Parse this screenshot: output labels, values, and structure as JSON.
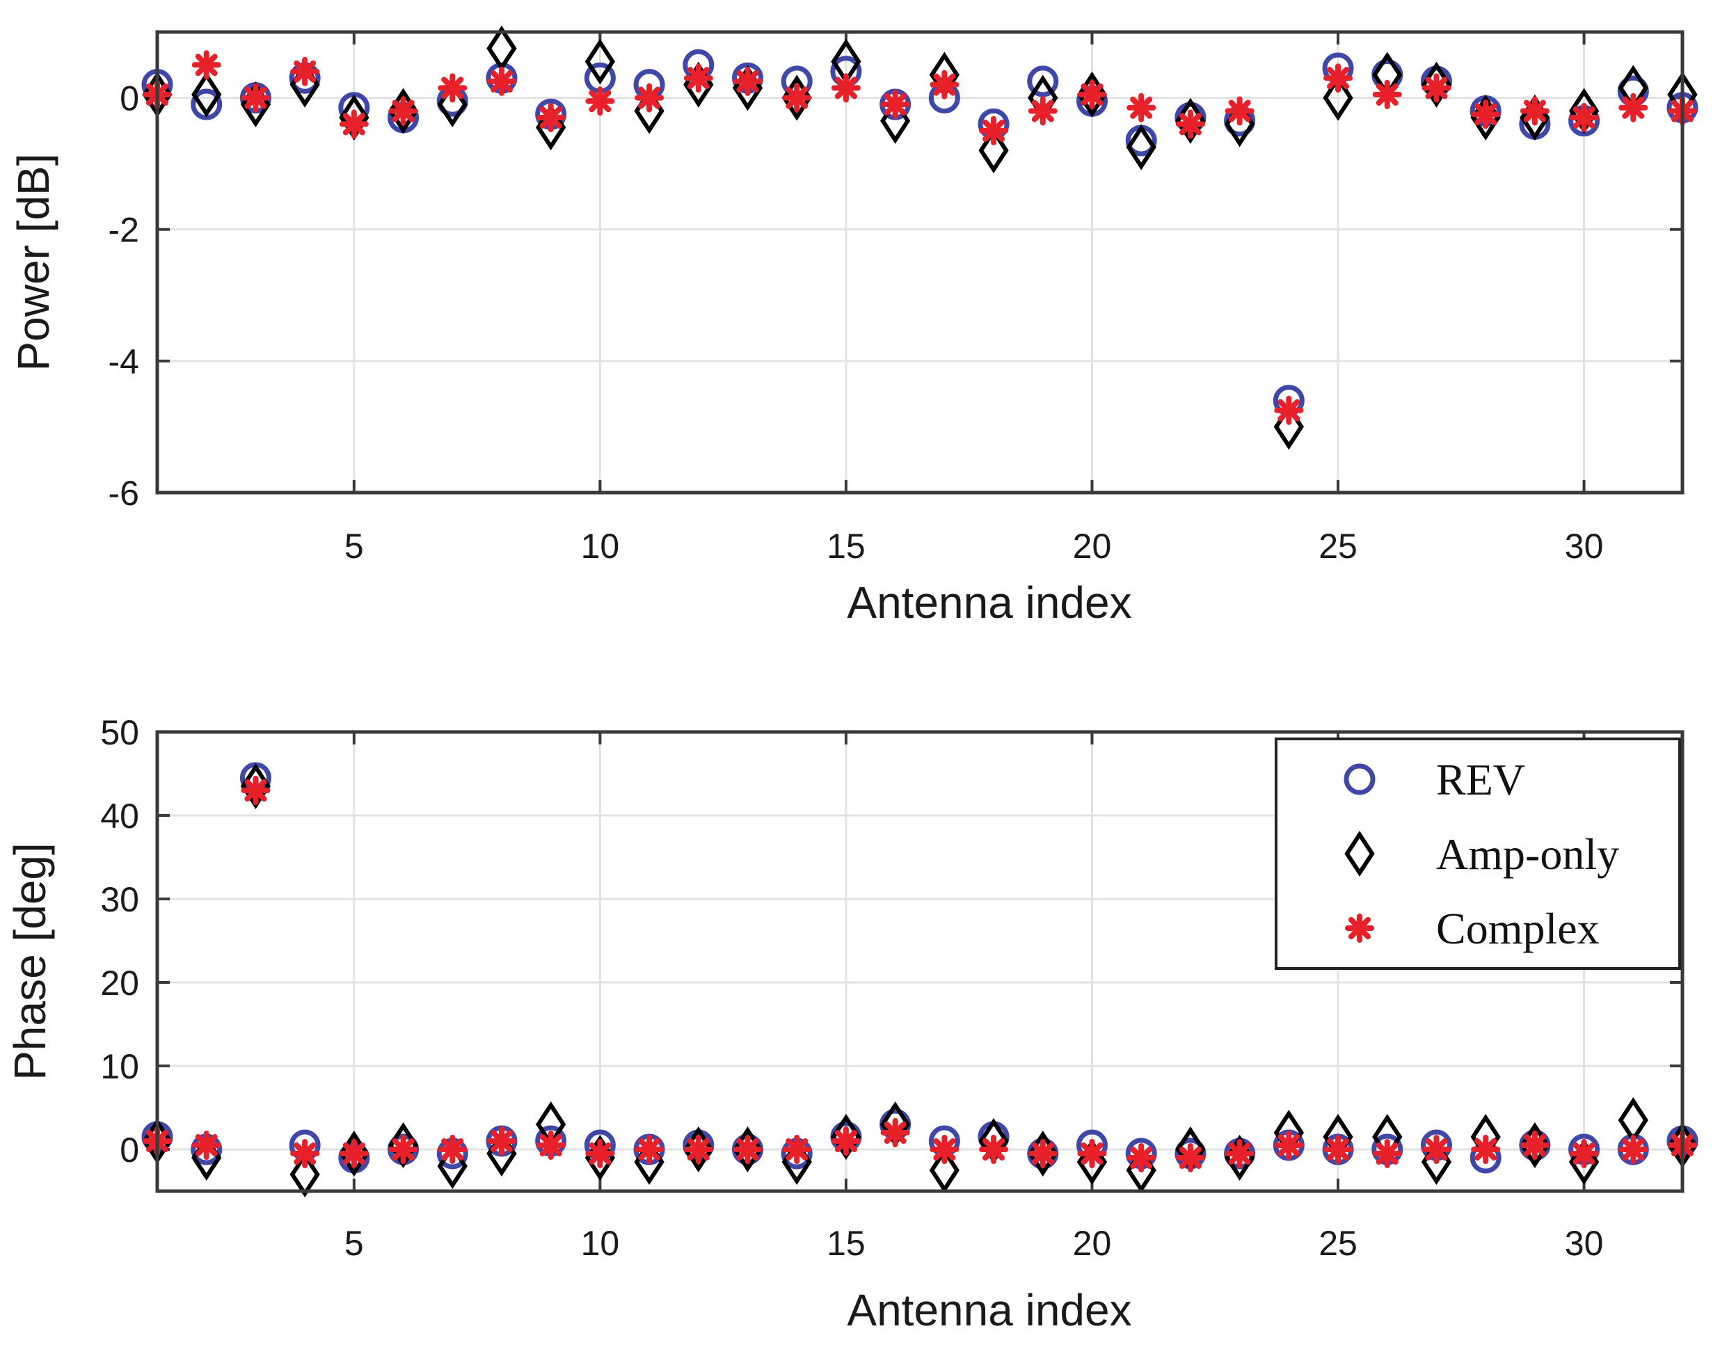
{
  "chart_data": [
    {
      "type": "scatter",
      "title": "",
      "xlabel": "Antenna index",
      "ylabel": "Power [dB]",
      "xlim": [
        1,
        32
      ],
      "ylim": [
        -6,
        1
      ],
      "xticks": [
        5,
        10,
        15,
        20,
        25,
        30
      ],
      "yticks": [
        -6,
        -4,
        -2,
        0
      ],
      "xtick_labels": [
        "5",
        "10",
        "15",
        "20",
        "25",
        "30"
      ],
      "ytick_labels": [
        "-6",
        "-4",
        "-2",
        "0"
      ],
      "grid": true,
      "legend": null,
      "x": [
        1,
        2,
        3,
        4,
        5,
        6,
        7,
        8,
        9,
        10,
        11,
        12,
        13,
        14,
        15,
        16,
        17,
        18,
        19,
        20,
        21,
        22,
        23,
        24,
        25,
        26,
        27,
        28,
        29,
        30,
        31,
        32
      ],
      "series": [
        {
          "name": "REV",
          "marker": "circle",
          "color": "#3f48a8",
          "values": [
            0.2,
            -0.1,
            0.0,
            0.3,
            -0.15,
            -0.3,
            -0.05,
            0.3,
            -0.25,
            0.3,
            0.2,
            0.5,
            0.3,
            0.25,
            0.4,
            -0.1,
            0.0,
            -0.4,
            0.25,
            -0.05,
            -0.65,
            -0.3,
            -0.35,
            -4.6,
            0.45,
            0.35,
            0.25,
            -0.2,
            -0.4,
            -0.35,
            0.1,
            -0.15
          ]
        },
        {
          "name": "Amp-only",
          "marker": "diamond",
          "color": "#000000",
          "values": [
            0.05,
            0.05,
            -0.1,
            0.2,
            -0.3,
            -0.2,
            -0.1,
            0.75,
            -0.45,
            0.55,
            -0.2,
            0.2,
            0.15,
            0.0,
            0.55,
            -0.35,
            0.35,
            -0.8,
            0.0,
            0.05,
            -0.75,
            -0.35,
            -0.4,
            -5.0,
            0.0,
            0.35,
            0.2,
            -0.3,
            -0.3,
            -0.2,
            0.15,
            0.05
          ]
        },
        {
          "name": "Complex",
          "marker": "asterisk",
          "color": "#e8202a",
          "values": [
            0.05,
            0.5,
            0.0,
            0.4,
            -0.4,
            -0.2,
            0.15,
            0.25,
            -0.3,
            -0.05,
            0.0,
            0.3,
            0.25,
            0.0,
            0.15,
            -0.1,
            0.2,
            -0.5,
            -0.2,
            0.05,
            -0.15,
            -0.4,
            -0.2,
            -4.75,
            0.3,
            0.05,
            0.15,
            -0.25,
            -0.2,
            -0.3,
            -0.15,
            -0.2
          ]
        }
      ]
    },
    {
      "type": "scatter",
      "title": "",
      "xlabel": "Antenna index",
      "ylabel": "Phase [deg]",
      "xlim": [
        1,
        32
      ],
      "ylim": [
        -5,
        50
      ],
      "xticks": [
        5,
        10,
        15,
        20,
        25,
        30
      ],
      "yticks": [
        0,
        10,
        20,
        30,
        40,
        50
      ],
      "xtick_labels": [
        "5",
        "10",
        "15",
        "20",
        "25",
        "30"
      ],
      "ytick_labels": [
        "0",
        "10",
        "20",
        "30",
        "40",
        "50"
      ],
      "grid": true,
      "legend": "top-right",
      "x": [
        1,
        2,
        3,
        4,
        5,
        6,
        7,
        8,
        9,
        10,
        11,
        12,
        13,
        14,
        15,
        16,
        17,
        18,
        19,
        20,
        21,
        22,
        23,
        24,
        25,
        26,
        27,
        28,
        29,
        30,
        31,
        32
      ],
      "series": [
        {
          "name": "REV",
          "marker": "circle",
          "color": "#3f48a8",
          "values": [
            1.5,
            0.0,
            44.5,
            0.5,
            -1.0,
            0.0,
            -0.5,
            1.0,
            1.0,
            0.5,
            0.0,
            0.5,
            0.0,
            -0.5,
            1.5,
            3.0,
            1.0,
            1.5,
            -0.5,
            0.5,
            -0.5,
            -0.5,
            -0.5,
            0.5,
            0.0,
            0.0,
            0.5,
            -1.0,
            0.5,
            0.0,
            0.0,
            1.0
          ]
        },
        {
          "name": "Amp-only",
          "marker": "diamond",
          "color": "#000000",
          "values": [
            1.0,
            -1.0,
            43.5,
            -3.0,
            -0.5,
            0.5,
            -2.0,
            -0.5,
            3.0,
            -1.0,
            -1.5,
            0.0,
            0.0,
            -1.5,
            1.5,
            3.0,
            -2.5,
            1.0,
            -0.5,
            -1.5,
            -2.5,
            0.0,
            -1.0,
            2.0,
            1.5,
            1.5,
            -1.5,
            1.5,
            0.5,
            -1.5,
            3.5,
            0.5
          ]
        },
        {
          "name": "Complex",
          "marker": "asterisk",
          "color": "#e8202a",
          "values": [
            1.0,
            0.5,
            43.0,
            -0.5,
            -0.5,
            0.0,
            0.0,
            1.0,
            0.5,
            -0.5,
            0.0,
            0.0,
            0.0,
            0.0,
            1.0,
            2.0,
            0.0,
            0.0,
            -0.5,
            -0.5,
            -1.0,
            -1.0,
            -0.5,
            0.5,
            0.0,
            -0.5,
            0.0,
            0.0,
            0.5,
            -0.5,
            0.0,
            0.5
          ]
        }
      ]
    }
  ]
}
